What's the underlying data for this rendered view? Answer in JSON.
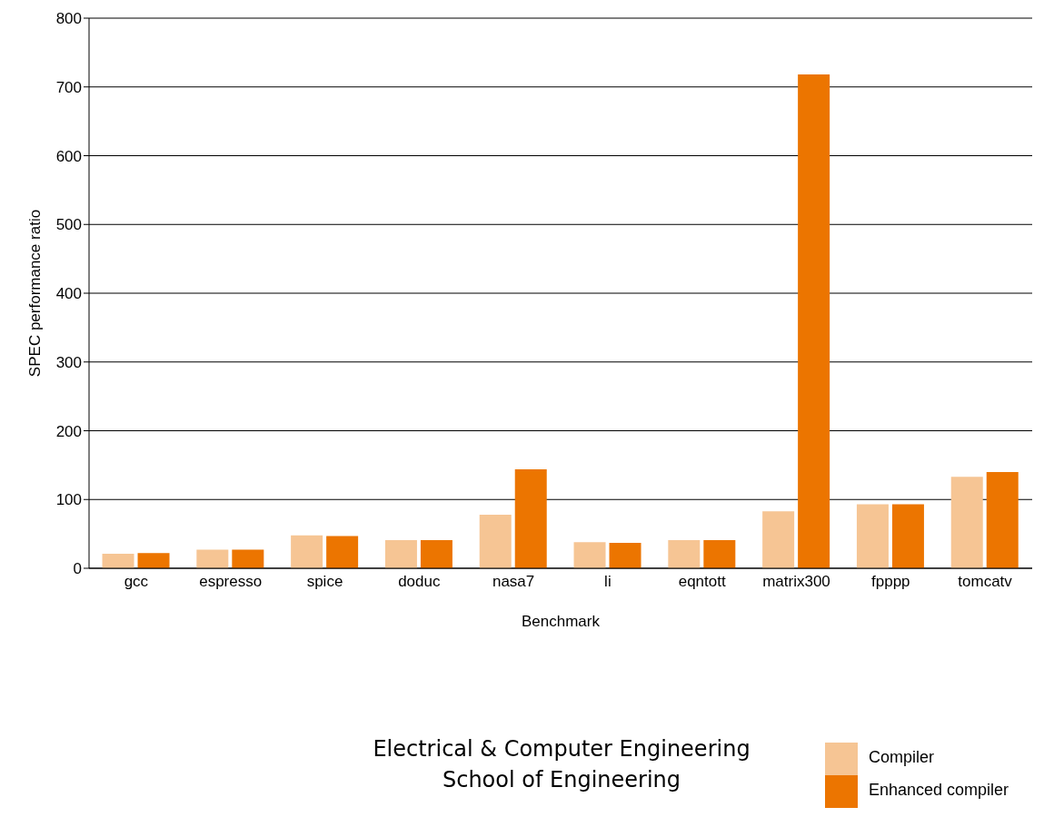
{
  "chart_data": {
    "type": "bar",
    "xlabel": "Benchmark",
    "ylabel": "SPEC performance ratio",
    "categories": [
      "gcc",
      "espresso",
      "spice",
      "doduc",
      "nasa7",
      "li",
      "eqntott",
      "matrix300",
      "fpppp",
      "tomcatv"
    ],
    "series": [
      {
        "name": "Compiler",
        "color": "#f6c594",
        "values": [
          21,
          27,
          48,
          41,
          78,
          38,
          41,
          83,
          93,
          133
        ]
      },
      {
        "name": "Enhanced compiler",
        "color": "#ec7500",
        "values": [
          22,
          27,
          47,
          41,
          144,
          37,
          41,
          718,
          93,
          140
        ]
      }
    ],
    "ylim": [
      0,
      800
    ],
    "yticks": [
      0,
      100,
      200,
      300,
      400,
      500,
      600,
      700,
      800
    ],
    "grid": "y",
    "legend": "bottom right",
    "annotations": [
      "Electrical & Computer Engineering",
      "School of Engineering"
    ]
  }
}
